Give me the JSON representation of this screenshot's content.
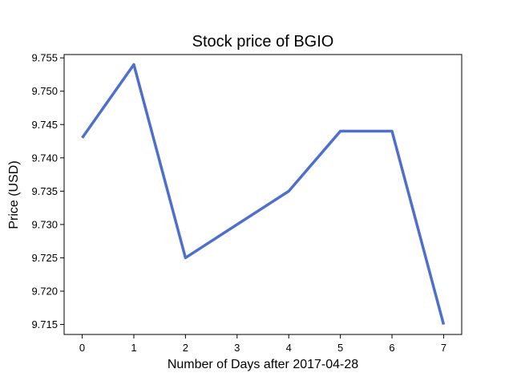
{
  "chart_data": {
    "type": "line",
    "title": "Stock price of BGIO",
    "xlabel": "Number of Days after 2017-04-28",
    "ylabel": "Price (USD)",
    "x": [
      0,
      1,
      2,
      4,
      5,
      6,
      7
    ],
    "series": [
      {
        "values": [
          9.743,
          9.754,
          9.725,
          9.735,
          9.744,
          9.744,
          9.715
        ],
        "color": "#4f6fcc"
      }
    ],
    "xticks": [
      0,
      1,
      2,
      3,
      4,
      5,
      6,
      7
    ],
    "xtick_labels": [
      "0",
      "1",
      "2",
      "3",
      "4",
      "5",
      "6",
      "7"
    ],
    "yticks": [
      9.715,
      9.72,
      9.725,
      9.73,
      9.735,
      9.74,
      9.745,
      9.75,
      9.755
    ],
    "ytick_labels": [
      "9.715",
      "9.720",
      "9.725",
      "9.730",
      "9.735",
      "9.740",
      "9.745",
      "9.750",
      "9.755"
    ],
    "xlim": [
      -0.35,
      7.35
    ],
    "ylim": [
      9.7135,
      9.7555
    ],
    "grid": false,
    "legend": "none"
  }
}
